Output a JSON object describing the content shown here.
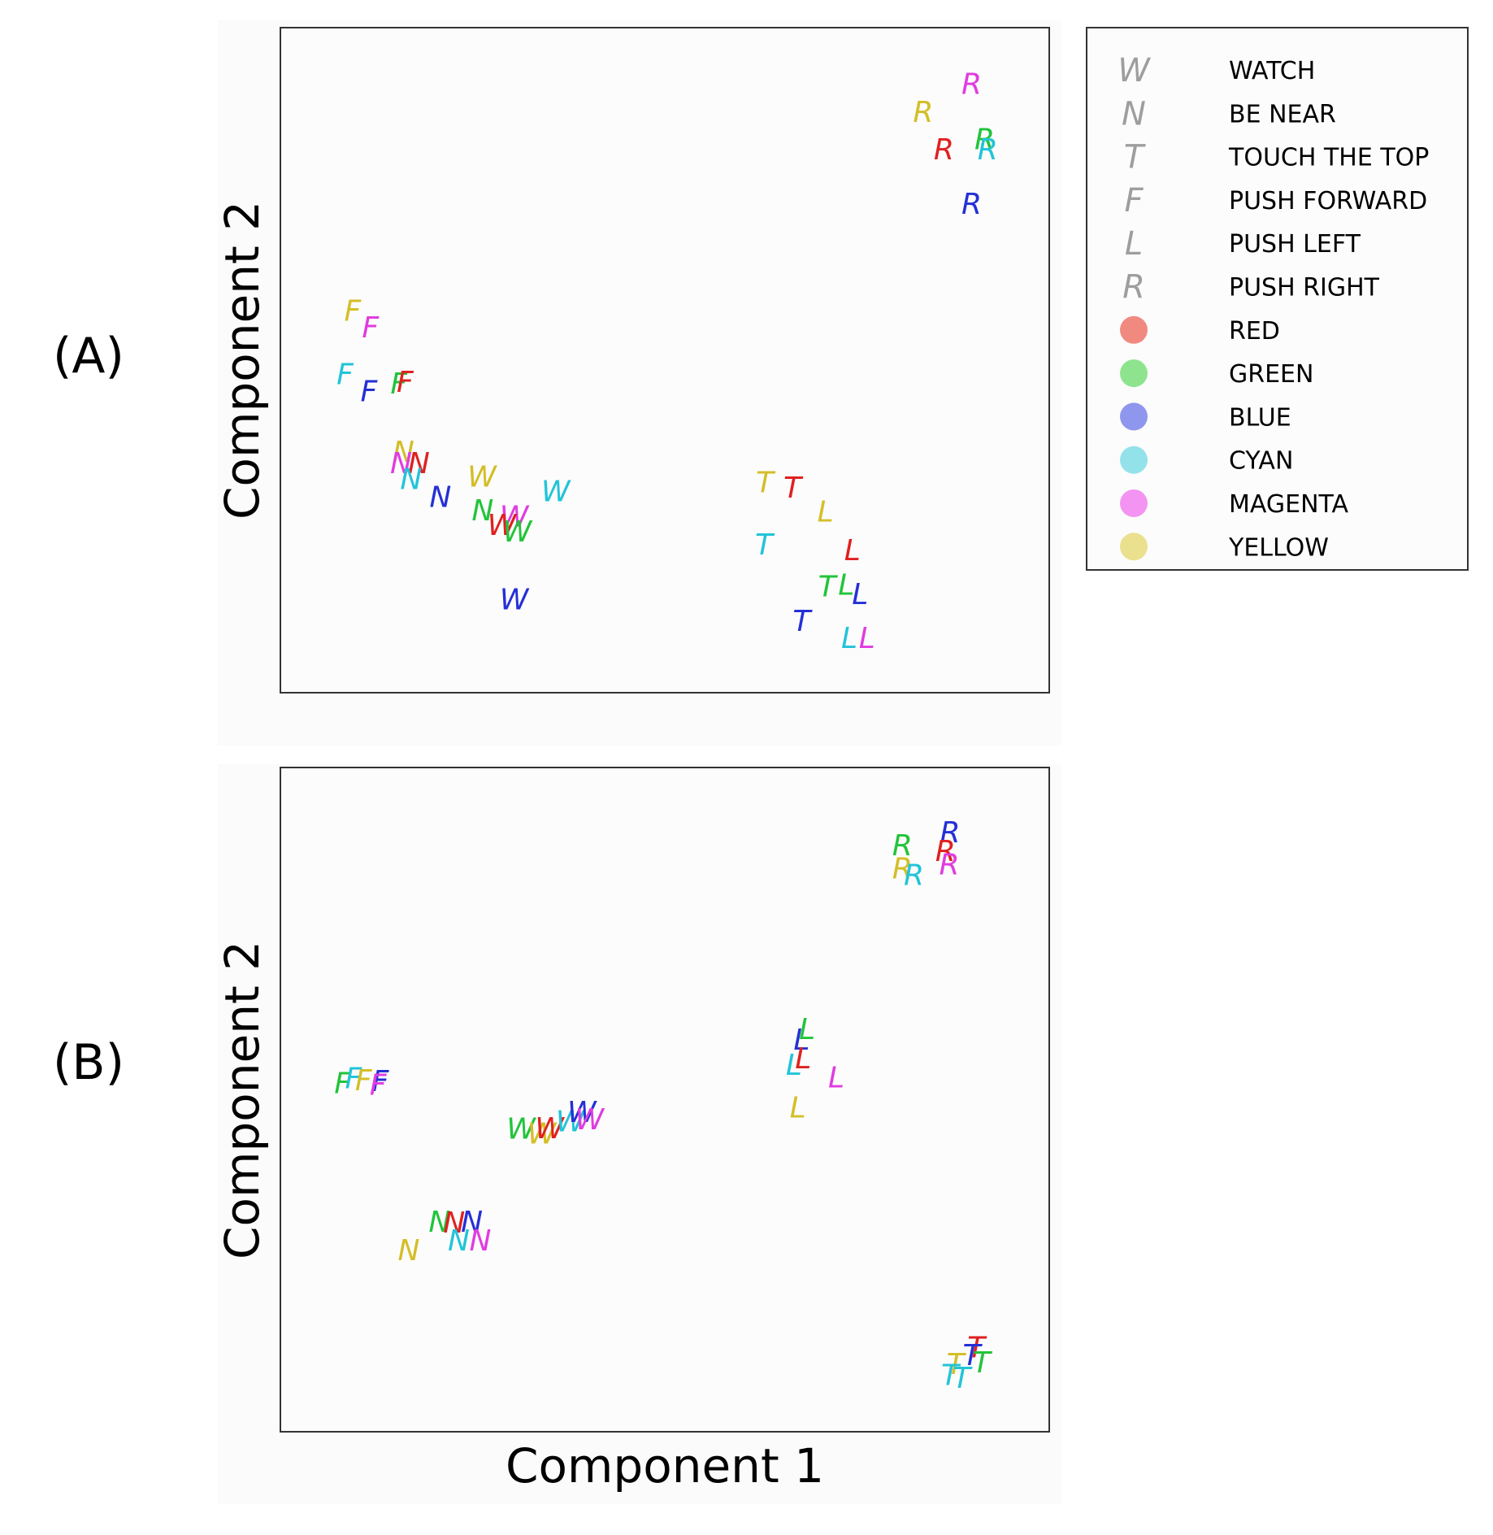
{
  "panel_labels": [
    "(A)",
    "(B)"
  ],
  "shared_xlabel": "Component 1",
  "legend": {
    "tasks": [
      {
        "letter": "W",
        "label": "WATCH"
      },
      {
        "letter": "N",
        "label": "BE NEAR"
      },
      {
        "letter": "T",
        "label": "TOUCH THE TOP"
      },
      {
        "letter": "F",
        "label": "PUSH FORWARD"
      },
      {
        "letter": "L",
        "label": "PUSH LEFT"
      },
      {
        "letter": "R",
        "label": "PUSH RIGHT"
      }
    ],
    "colors": [
      {
        "key": "red",
        "label": "RED",
        "hex": "#f08a80"
      },
      {
        "key": "green",
        "label": "GREEN",
        "hex": "#8ee48e"
      },
      {
        "key": "blue",
        "label": "BLUE",
        "hex": "#8f96ee"
      },
      {
        "key": "cyan",
        "label": "CYAN",
        "hex": "#93e2ea"
      },
      {
        "key": "magenta",
        "label": "MAGENTA",
        "hex": "#f394f2"
      },
      {
        "key": "yellow",
        "label": "YELLOW",
        "hex": "#ebe08e"
      }
    ]
  },
  "mark_colors": {
    "red": "#e02020",
    "green": "#22c43a",
    "blue": "#2430d6",
    "cyan": "#22c4d8",
    "magenta": "#e03ce0",
    "yellow": "#d4be28"
  },
  "chart_data": [
    {
      "type": "scatter",
      "title": "(A)",
      "xlabel": "",
      "ylabel": "Component 2",
      "xlim": [
        0,
        100
      ],
      "ylim": [
        0,
        100
      ],
      "ticks": "none",
      "points": [
        {
          "letter": "R",
          "color": "magenta",
          "x": 89.9,
          "y": 91.6
        },
        {
          "letter": "R",
          "color": "yellow",
          "x": 83.6,
          "y": 87.4
        },
        {
          "letter": "R",
          "color": "green",
          "x": 91.6,
          "y": 83.3
        },
        {
          "letter": "R",
          "color": "red",
          "x": 86.3,
          "y": 81.8
        },
        {
          "letter": "R",
          "color": "cyan",
          "x": 92.0,
          "y": 81.8
        },
        {
          "letter": "R",
          "color": "blue",
          "x": 89.9,
          "y": 73.6
        },
        {
          "letter": "F",
          "color": "yellow",
          "x": 9.4,
          "y": 57.5
        },
        {
          "letter": "F",
          "color": "magenta",
          "x": 11.7,
          "y": 55.0
        },
        {
          "letter": "F",
          "color": "cyan",
          "x": 8.4,
          "y": 48.0
        },
        {
          "letter": "F",
          "color": "blue",
          "x": 11.5,
          "y": 45.4
        },
        {
          "letter": "F",
          "color": "green",
          "x": 15.4,
          "y": 46.6
        },
        {
          "letter": "F",
          "color": "red",
          "x": 16.2,
          "y": 46.8
        },
        {
          "letter": "N",
          "color": "yellow",
          "x": 16.0,
          "y": 36.3
        },
        {
          "letter": "N",
          "color": "magenta",
          "x": 15.7,
          "y": 34.6
        },
        {
          "letter": "N",
          "color": "red",
          "x": 18.0,
          "y": 34.6
        },
        {
          "letter": "N",
          "color": "cyan",
          "x": 17.0,
          "y": 32.2
        },
        {
          "letter": "N",
          "color": "blue",
          "x": 20.8,
          "y": 29.5
        },
        {
          "letter": "W",
          "color": "yellow",
          "x": 26.2,
          "y": 32.6
        },
        {
          "letter": "W",
          "color": "cyan",
          "x": 35.8,
          "y": 30.4
        },
        {
          "letter": "N",
          "color": "green",
          "x": 26.3,
          "y": 27.5
        },
        {
          "letter": "W",
          "color": "magenta",
          "x": 30.4,
          "y": 26.6
        },
        {
          "letter": "W",
          "color": "red",
          "x": 28.8,
          "y": 25.3
        },
        {
          "letter": "W",
          "color": "green",
          "x": 30.8,
          "y": 24.3
        },
        {
          "letter": "W",
          "color": "blue",
          "x": 30.4,
          "y": 14.1
        },
        {
          "letter": "T",
          "color": "yellow",
          "x": 63.0,
          "y": 31.7
        },
        {
          "letter": "T",
          "color": "red",
          "x": 66.6,
          "y": 30.9
        },
        {
          "letter": "L",
          "color": "yellow",
          "x": 70.9,
          "y": 27.3
        },
        {
          "letter": "T",
          "color": "cyan",
          "x": 62.9,
          "y": 22.4
        },
        {
          "letter": "L",
          "color": "red",
          "x": 74.4,
          "y": 21.5
        },
        {
          "letter": "T",
          "color": "green",
          "x": 71.1,
          "y": 16.1
        },
        {
          "letter": "L",
          "color": "green",
          "x": 73.6,
          "y": 16.3
        },
        {
          "letter": "L",
          "color": "blue",
          "x": 75.4,
          "y": 14.9
        },
        {
          "letter": "T",
          "color": "blue",
          "x": 67.8,
          "y": 10.9
        },
        {
          "letter": "L",
          "color": "cyan",
          "x": 74.0,
          "y": 8.3
        },
        {
          "letter": "L",
          "color": "magenta",
          "x": 76.3,
          "y": 8.3
        }
      ]
    },
    {
      "type": "scatter",
      "title": "(B)",
      "xlabel": "Component 1",
      "ylabel": "Component 2",
      "xlim": [
        0,
        100
      ],
      "ylim": [
        0,
        100
      ],
      "ticks": "none",
      "points": [
        {
          "letter": "R",
          "color": "blue",
          "x": 87.1,
          "y": 90.3
        },
        {
          "letter": "R",
          "color": "green",
          "x": 80.9,
          "y": 88.4
        },
        {
          "letter": "R",
          "color": "red",
          "x": 86.5,
          "y": 87.5
        },
        {
          "letter": "R",
          "color": "yellow",
          "x": 80.9,
          "y": 84.9
        },
        {
          "letter": "R",
          "color": "magenta",
          "x": 87.0,
          "y": 85.5
        },
        {
          "letter": "R",
          "color": "cyan",
          "x": 82.4,
          "y": 83.9
        },
        {
          "letter": "L",
          "color": "green",
          "x": 68.5,
          "y": 60.7
        },
        {
          "letter": "L",
          "color": "blue",
          "x": 67.8,
          "y": 59.1
        },
        {
          "letter": "L",
          "color": "cyan",
          "x": 66.8,
          "y": 55.3
        },
        {
          "letter": "L",
          "color": "red",
          "x": 68.0,
          "y": 56.3
        },
        {
          "letter": "L",
          "color": "magenta",
          "x": 72.3,
          "y": 53.4
        },
        {
          "letter": "L",
          "color": "yellow",
          "x": 67.3,
          "y": 48.9
        },
        {
          "letter": "F",
          "color": "green",
          "x": 8.1,
          "y": 52.6
        },
        {
          "letter": "F",
          "color": "cyan",
          "x": 9.5,
          "y": 53.3
        },
        {
          "letter": "F",
          "color": "yellow",
          "x": 10.8,
          "y": 53.0
        },
        {
          "letter": "F",
          "color": "blue",
          "x": 13.0,
          "y": 52.9
        },
        {
          "letter": "F",
          "color": "magenta",
          "x": 12.7,
          "y": 52.3
        },
        {
          "letter": "W",
          "color": "green",
          "x": 31.3,
          "y": 45.7
        },
        {
          "letter": "W",
          "color": "yellow",
          "x": 34.0,
          "y": 45.0
        },
        {
          "letter": "W",
          "color": "red",
          "x": 35.0,
          "y": 45.8
        },
        {
          "letter": "W",
          "color": "cyan",
          "x": 37.7,
          "y": 46.8
        },
        {
          "letter": "W",
          "color": "blue",
          "x": 39.2,
          "y": 48.2
        },
        {
          "letter": "W",
          "color": "magenta",
          "x": 40.2,
          "y": 47.1
        },
        {
          "letter": "N",
          "color": "green",
          "x": 20.7,
          "y": 31.7
        },
        {
          "letter": "N",
          "color": "red",
          "x": 22.6,
          "y": 31.6
        },
        {
          "letter": "N",
          "color": "blue",
          "x": 24.9,
          "y": 31.7
        },
        {
          "letter": "N",
          "color": "cyan",
          "x": 23.2,
          "y": 28.9
        },
        {
          "letter": "N",
          "color": "magenta",
          "x": 26.0,
          "y": 28.9
        },
        {
          "letter": "N",
          "color": "yellow",
          "x": 16.7,
          "y": 27.4
        },
        {
          "letter": "T",
          "color": "red",
          "x": 90.5,
          "y": 12.8
        },
        {
          "letter": "T",
          "color": "blue",
          "x": 89.9,
          "y": 11.6
        },
        {
          "letter": "T",
          "color": "yellow",
          "x": 87.8,
          "y": 10.3
        },
        {
          "letter": "T",
          "color": "green",
          "x": 91.2,
          "y": 10.5
        },
        {
          "letter": "T",
          "color": "cyan",
          "x": 87.1,
          "y": 8.6
        },
        {
          "letter": "T",
          "color": "cyan",
          "x": 88.6,
          "y": 8.2
        }
      ]
    }
  ]
}
